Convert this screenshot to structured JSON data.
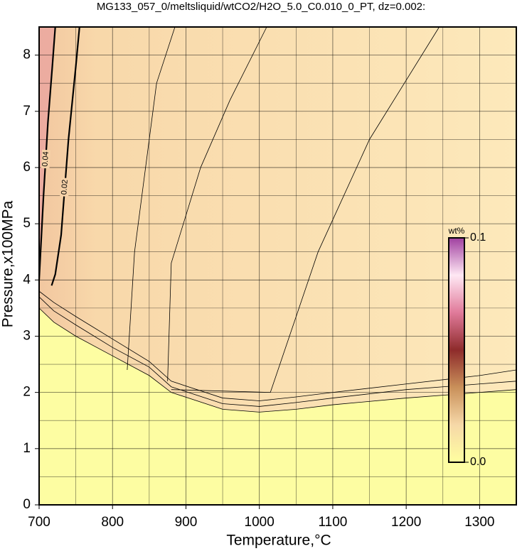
{
  "chart_data": {
    "type": "contour",
    "title": "MG133_057_0/meltsliquid/wtCO2/H2O_5.0_C0.010_0_PT, dz=0.002:",
    "xlabel": "Temperature,°C",
    "ylabel": "Pressure,x100MPa",
    "xlim": [
      700,
      1350
    ],
    "ylim": [
      0,
      8.5
    ],
    "xticks": [
      700,
      800,
      900,
      1000,
      1100,
      1200,
      1300
    ],
    "yticks": [
      0,
      1,
      2,
      3,
      4,
      5,
      6,
      7,
      8
    ],
    "xminorticks": [
      750,
      850,
      950,
      1050,
      1150,
      1250,
      1350
    ],
    "yminorticks": [
      0.5,
      1.5,
      2.5,
      3.5,
      4.5,
      5.5,
      6.5,
      7.5,
      8.5
    ],
    "grid": true,
    "colorbar": {
      "label": "wt%",
      "lim": [
        0,
        0.1
      ],
      "ticks": [
        {
          "value": 0,
          "label": "0.0"
        },
        0.1
      ],
      "colors": [
        "#ffffa0",
        "#f6d8a8",
        "#c9905a",
        "#8e2b2b",
        "#e07a9a",
        "#ffe8f4",
        "#a040a0"
      ]
    },
    "contours": [
      {
        "level": 0.002,
        "x": [
          700,
          720,
          750,
          800,
          850,
          880,
          950,
          1000,
          1050,
          1100,
          1200,
          1300,
          1350
        ],
        "y": [
          3.5,
          3.25,
          3.0,
          2.65,
          2.3,
          2.0,
          1.7,
          1.65,
          1.7,
          1.78,
          1.9,
          2.0,
          2.05
        ]
      },
      {
        "level": 0.004,
        "x": [
          700,
          720,
          750,
          800,
          850,
          880,
          950,
          1000,
          1050,
          1100,
          1200,
          1300,
          1350
        ],
        "y": [
          3.7,
          3.45,
          3.2,
          2.8,
          2.45,
          2.1,
          1.8,
          1.75,
          1.82,
          1.9,
          2.05,
          2.15,
          2.2
        ]
      },
      {
        "level": 0.006,
        "x": [
          700,
          720,
          750,
          800,
          850,
          880,
          950,
          1000,
          1050,
          1100,
          1200,
          1300,
          1350
        ],
        "y": [
          3.8,
          3.6,
          3.35,
          2.95,
          2.55,
          2.2,
          1.9,
          1.85,
          1.92,
          2.0,
          2.15,
          2.3,
          2.4
        ]
      },
      {
        "level": 0.008,
        "x": [
          880,
          1015,
          1080,
          1150,
          1245
        ],
        "y": [
          2.05,
          2.0,
          4.5,
          6.5,
          8.5
        ]
      },
      {
        "level": 0.01,
        "x": [
          875,
          880,
          920,
          960,
          1010
        ],
        "y": [
          2.2,
          4.3,
          6.0,
          7.2,
          8.5
        ]
      },
      {
        "level": 0.012,
        "x": [
          820,
          830,
          845,
          860,
          885
        ],
        "y": [
          2.4,
          4.5,
          6.0,
          7.5,
          8.5
        ]
      },
      {
        "level": 0.02,
        "label": "0.02",
        "x": [
          717,
          722,
          730,
          740,
          750,
          755
        ],
        "y": [
          3.9,
          4.1,
          4.8,
          6.5,
          7.8,
          8.5
        ]
      },
      {
        "level": 0.04,
        "label": "0.04",
        "x": [
          700,
          706,
          712,
          718,
          722
        ],
        "y": [
          4.0,
          5.5,
          6.8,
          7.8,
          8.5
        ]
      }
    ]
  }
}
